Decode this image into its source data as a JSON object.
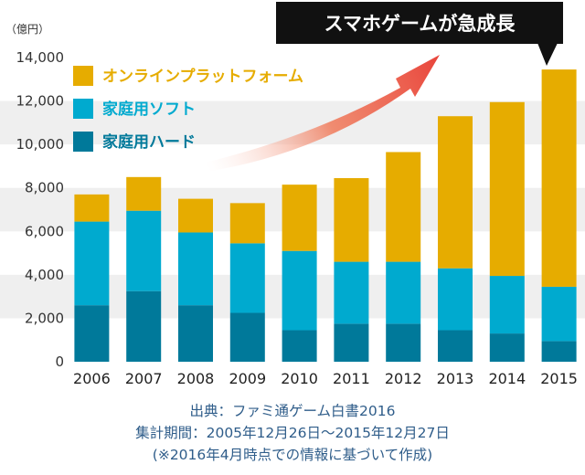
{
  "colors": {
    "online": "#e6ac00",
    "soft": "#00aacf",
    "hard": "#00799a",
    "band": "#efefef",
    "callout_bg": "#111111",
    "arrow": "#e8433a",
    "note_text": "#2f5d8a"
  },
  "chart_data": {
    "type": "bar",
    "stacked": true,
    "unit_label": "（億円）",
    "categories": [
      "2006",
      "2007",
      "2008",
      "2009",
      "2010",
      "2011",
      "2012",
      "2013",
      "2014",
      "2015"
    ],
    "series": [
      {
        "name": "家庭用ハード",
        "color": "#00799a",
        "values": [
          2600,
          3250,
          2600,
          2250,
          1450,
          1750,
          1750,
          1450,
          1300,
          950
        ]
      },
      {
        "name": "家庭用ソフト",
        "color": "#00aacf",
        "values": [
          3850,
          3700,
          3350,
          3200,
          3650,
          2850,
          2850,
          2850,
          2650,
          2500
        ]
      },
      {
        "name": "オンラインプラットフォーム",
        "color": "#e6ac00",
        "values": [
          1250,
          1550,
          1550,
          1850,
          3050,
          3850,
          5050,
          7000,
          8000,
          10000
        ]
      }
    ],
    "ylim": [
      0,
      14000
    ],
    "yticks": [
      "0",
      "2,000",
      "4,000",
      "6,000",
      "8,000",
      "10,000",
      "12,000",
      "14,000"
    ],
    "grid": "alternating bands",
    "legend": {
      "position": "top-left",
      "entries": [
        "オンラインプラットフォーム",
        "家庭用ソフト",
        "家庭用ハード"
      ]
    },
    "annotation": "スマホゲームが急成長"
  },
  "notes": {
    "source": "出典：ファミ通ゲーム白書2016",
    "period": "集計期間：2005年12月26日〜2015年12月27日",
    "basis": "(※2016年4月時点での情報に基づいて作成)"
  }
}
